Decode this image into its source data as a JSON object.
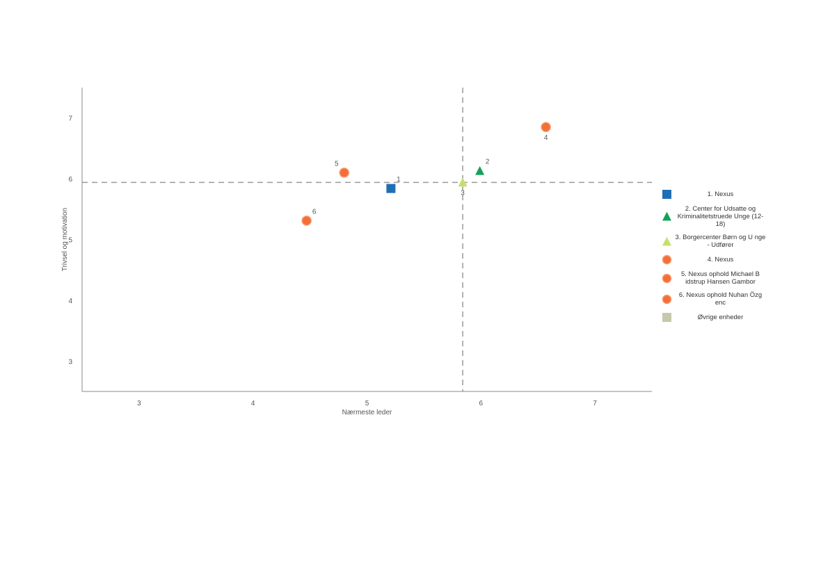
{
  "chart_data": {
    "type": "scatter",
    "xlabel": "Nærmeste leder",
    "ylabel": "Trivsel og motivation",
    "xlim": [
      2.5,
      7.5
    ],
    "ylim": [
      2.5,
      7.5
    ],
    "x_ticks": [
      "3",
      "4",
      "5",
      "6",
      "7"
    ],
    "y_ticks": [
      "3",
      "4",
      "5",
      "6",
      "7"
    ],
    "reference_lines": {
      "x": 5.84,
      "y": 5.94,
      "style": "dashed"
    },
    "grid": false,
    "legend_position": "right",
    "series": [
      {
        "name": "1. Nexus",
        "marker": "square",
        "color": "#1f6fb5",
        "x": 5.21,
        "y": 5.84,
        "label": "1",
        "label_pos": "top-right"
      },
      {
        "name": "2. Center for Udsatte og Kriminalitetstruede Unge (12-18)",
        "marker": "triangle",
        "color": "#16a05a",
        "x": 5.99,
        "y": 6.13,
        "label": "2",
        "label_pos": "top-right"
      },
      {
        "name": "3. Borgercenter Børn og U nge - Udfører",
        "marker": "triangle",
        "color": "#c5e06a",
        "x": 5.84,
        "y": 5.94,
        "label": "3",
        "label_pos": "bottom"
      },
      {
        "name": "4. Nexus",
        "marker": "circle",
        "color": "#f46f37",
        "x": 6.57,
        "y": 6.85,
        "label": "4",
        "label_pos": "bottom"
      },
      {
        "name": "5. Nexus ophold Michael B idstrup Hansen Gambor",
        "marker": "circle",
        "color": "#f46f37",
        "x": 4.8,
        "y": 6.1,
        "label": "5",
        "label_pos": "top-left"
      },
      {
        "name": "6. Nexus ophold Nuhan Özg enc",
        "marker": "circle",
        "color": "#f46f37",
        "x": 4.47,
        "y": 5.31,
        "label": "6",
        "label_pos": "top-right"
      },
      {
        "name": "Øvrige enheder",
        "marker": "square",
        "color": "#c8c8ad",
        "points": []
      }
    ]
  }
}
